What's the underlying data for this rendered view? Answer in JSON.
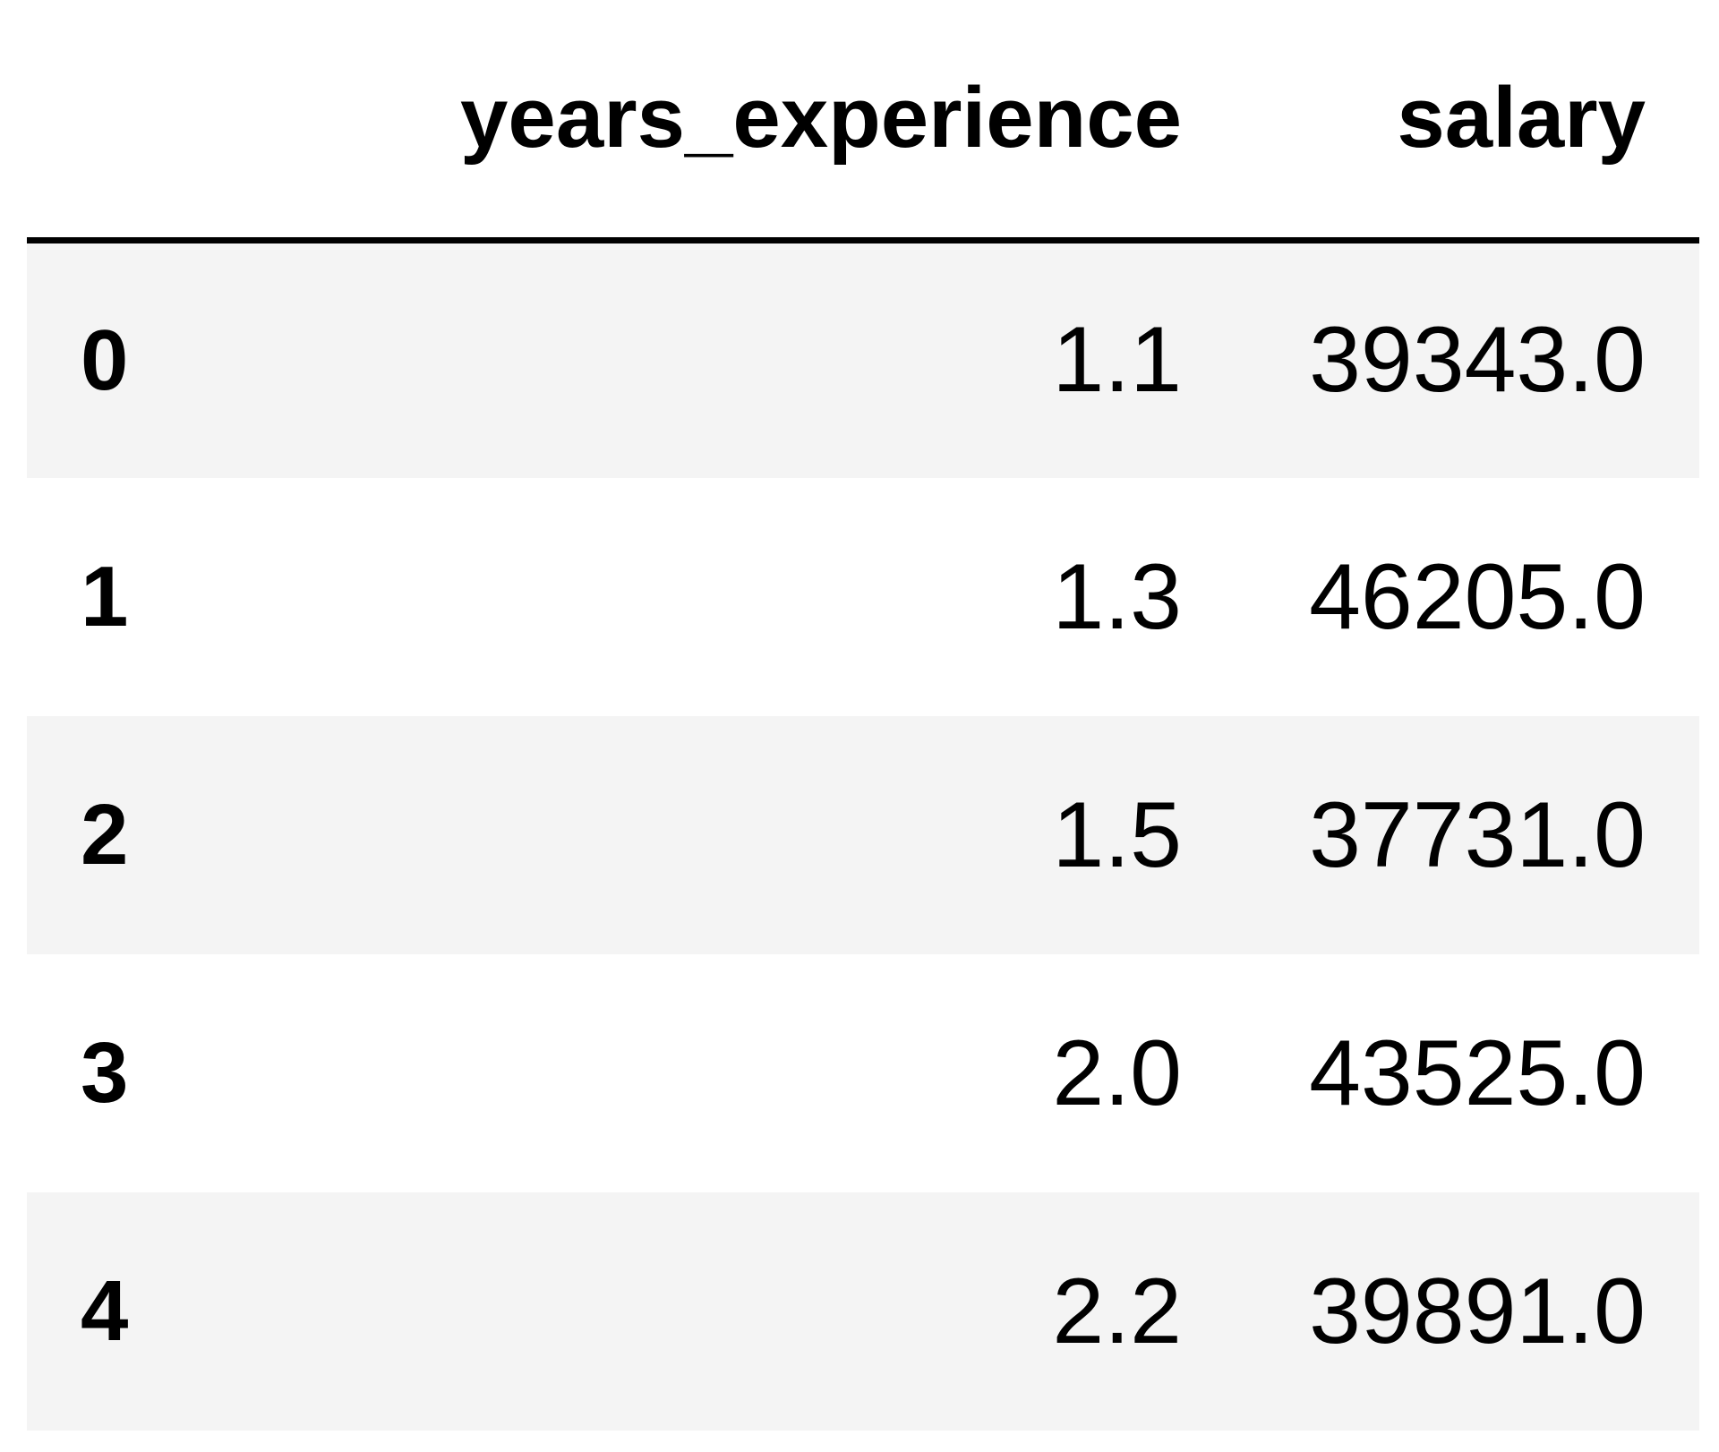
{
  "table": {
    "columns": {
      "index": "",
      "years_experience": "years_experience",
      "salary": "salary"
    },
    "rows": [
      {
        "index": "0",
        "years_experience": "1.1",
        "salary": "39343.0"
      },
      {
        "index": "1",
        "years_experience": "1.3",
        "salary": "46205.0"
      },
      {
        "index": "2",
        "years_experience": "1.5",
        "salary": "37731.0"
      },
      {
        "index": "3",
        "years_experience": "2.0",
        "salary": "43525.0"
      },
      {
        "index": "4",
        "years_experience": "2.2",
        "salary": "39891.0"
      }
    ]
  }
}
